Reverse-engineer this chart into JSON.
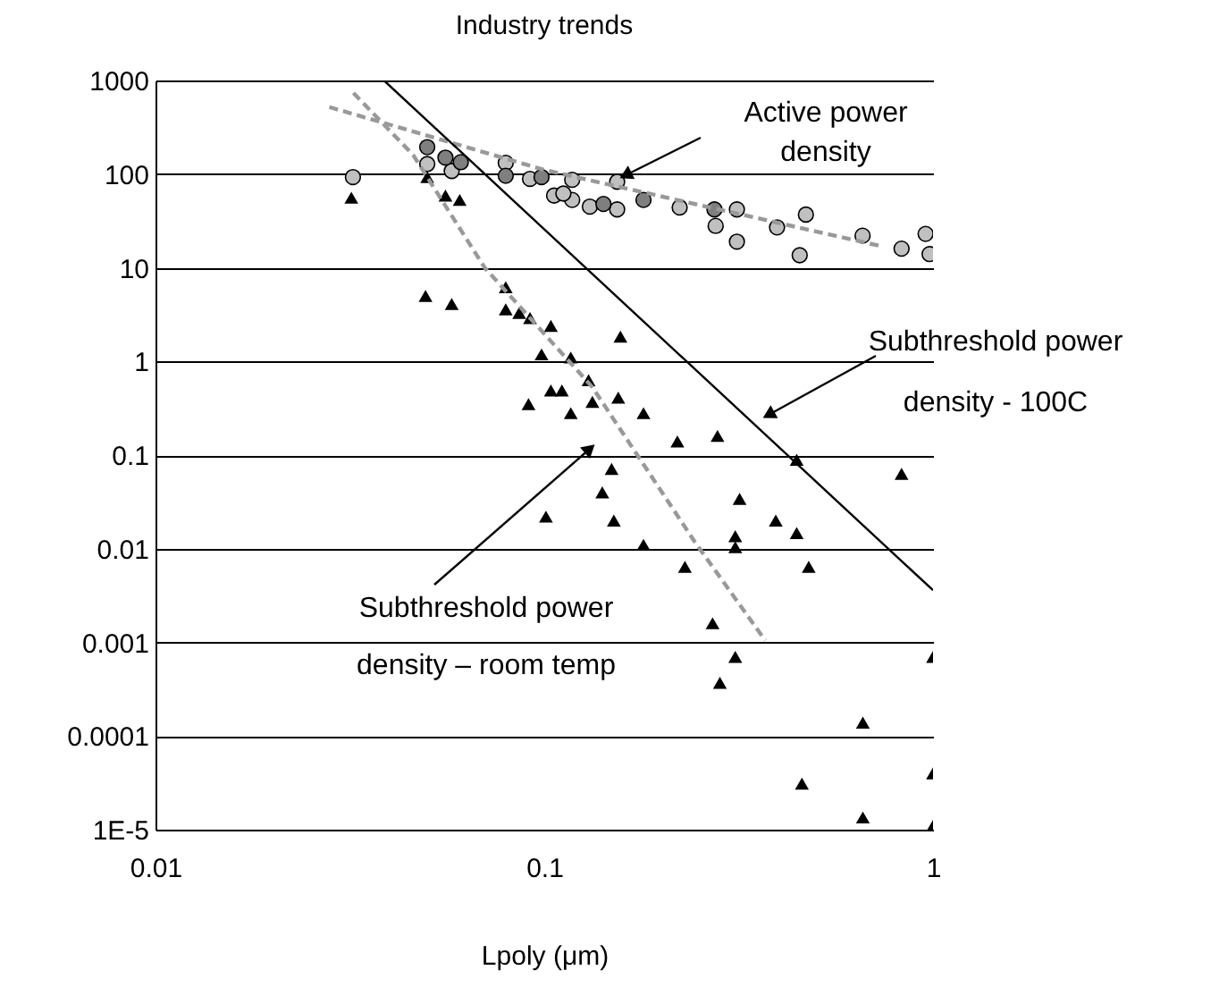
{
  "chart_data": {
    "type": "scatter",
    "title": "Industry trends",
    "xlabel": "Lpoly (μm)",
    "log": "xy",
    "grid": "y",
    "xlim": [
      0.01,
      1
    ],
    "xticks": [
      0.01,
      0.1,
      1
    ],
    "ylim": [
      1e-05,
      1000
    ],
    "yticks": [
      1000,
      100,
      10,
      1,
      0.1,
      0.01,
      0.001,
      0.0001,
      {
        "value": 1e-05,
        "label": "1E-5"
      }
    ],
    "series": [
      {
        "marker": "circle",
        "color": "#c0c0c0",
        "x": [
          0.0322,
          0.05,
          0.0578,
          0.0796,
          0.0919,
          0.106,
          0.118,
          0.118,
          0.131,
          0.154,
          0.154,
          0.223,
          0.276,
          0.313,
          0.313,
          0.397,
          0.471,
          0.454,
          0.659,
          0.83,
          0.957,
          0.98,
          0.112
        ],
        "values": [
          93,
          128,
          108,
          132,
          89,
          59,
          87,
          53,
          45,
          83,
          42,
          44,
          28,
          42,
          19,
          27,
          37,
          13.6,
          22,
          16,
          23,
          14,
          62
        ]
      },
      {
        "marker": "circle",
        "color": "#7f7f7f",
        "x": [
          0.05,
          0.0557,
          0.061,
          0.0796,
          0.0984,
          0.142,
          0.18,
          0.274
        ],
        "values": [
          194,
          150,
          134,
          96,
          93,
          48,
          53,
          42
        ]
      },
      {
        "marker": "triangle",
        "color": "#000000",
        "x": [
          0.0319,
          0.05,
          0.0557,
          0.0606,
          0.0495,
          0.0578,
          0.0796,
          0.0796,
          0.0862,
          0.0919,
          0.104,
          0.157,
          0.0984,
          0.117,
          0.13,
          0.104,
          0.111,
          0.0911,
          0.133,
          0.155,
          0.117,
          0.18,
          0.22,
          0.149,
          0.141,
          0.101,
          0.151,
          0.18,
          0.279,
          0.446,
          0.83,
          0.318,
          0.394,
          0.446,
          0.31,
          0.31,
          0.23,
          0.479,
          0.271,
          0.31,
          0.283,
          1,
          0.66,
          0.46,
          1,
          0.66,
          1
        ],
        "values": [
          56,
          93,
          59,
          53,
          5,
          4.1,
          6.2,
          3.6,
          3.3,
          2.9,
          2.4,
          1.84,
          1.19,
          1.1,
          0.63,
          0.49,
          0.49,
          0.35,
          0.37,
          0.41,
          0.28,
          0.28,
          0.14,
          0.071,
          0.04,
          0.022,
          0.02,
          0.011,
          0.16,
          0.089,
          0.063,
          0.034,
          0.02,
          0.0147,
          0.0136,
          0.0104,
          0.0064,
          0.0064,
          0.0016,
          0.0007,
          0.00037,
          0.0007,
          0.000139,
          3.1e-05,
          4e-05,
          1.35e-05,
          1.1e-05
        ]
      },
      {
        "type": "line",
        "line_style": "dashed",
        "color": "#999999",
        "x": [
          0.028,
          0.1,
          0.735
        ],
        "values": [
          520,
          111,
          17
        ]
      },
      {
        "type": "line",
        "line_style": "dashed",
        "color": "#999999",
        "x": [
          0.0323,
          0.046,
          0.0703,
          0.133,
          0.244,
          0.37
        ],
        "values": [
          735,
          160,
          10,
          0.53,
          0.0118,
          0.00105
        ]
      },
      {
        "type": "line",
        "line_style": "solid",
        "color": "#000000",
        "x": [
          0.0387,
          1
        ],
        "values": [
          1000,
          0.0036
        ]
      }
    ],
    "annotations": [
      "Active power density",
      "Subthreshold power density - 100C",
      "Subthreshold power density – room temp"
    ]
  }
}
